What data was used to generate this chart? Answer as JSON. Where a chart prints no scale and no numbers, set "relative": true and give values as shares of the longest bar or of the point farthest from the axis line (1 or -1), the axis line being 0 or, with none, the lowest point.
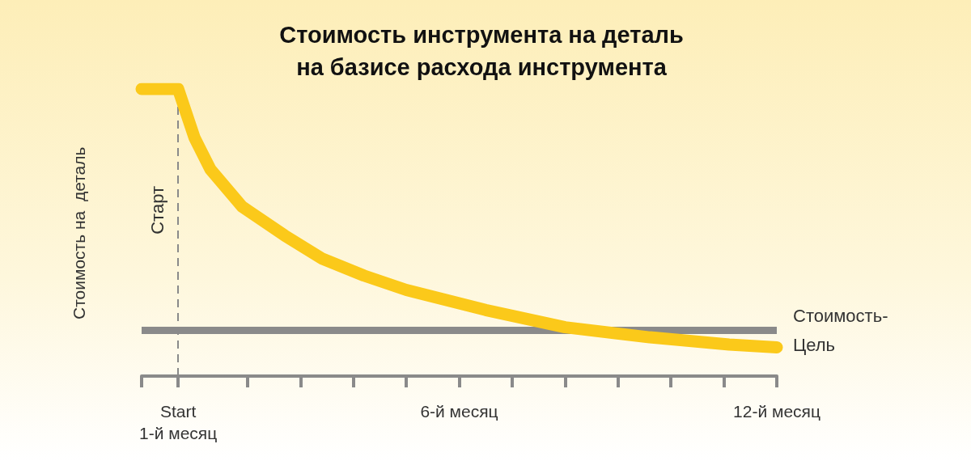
{
  "chart_data": {
    "type": "line",
    "title": "Стоимость инструмента на деталь\nна базисе расхода инструмента",
    "ylabel": "Стоимость на  деталь",
    "relative": true,
    "x": [
      0,
      0.69,
      1.0,
      1.3,
      1.9,
      2.7,
      3.4,
      4.2,
      5.0,
      6.5,
      8.0,
      9.6,
      11.1,
      12.0
    ],
    "series": [
      {
        "color": "#fbc91a",
        "values": [
          1,
          1,
          0.83,
          0.72,
          0.59,
          0.49,
          0.41,
          0.35,
          0.3,
          0.23,
          0.17,
          0.135,
          0.11,
          0.1
        ]
      }
    ],
    "xlim": [
      0,
      12
    ],
    "xticks": [
      {
        "value": 0,
        "label": null
      },
      {
        "value": 0.69,
        "label": "Start\n1-й месяц"
      },
      {
        "value": 2,
        "label": null
      },
      {
        "value": 3,
        "label": null
      },
      {
        "value": 4,
        "label": null
      },
      {
        "value": 5,
        "label": null
      },
      {
        "value": 6,
        "label": "6-й месяц"
      },
      {
        "value": 7,
        "label": null
      },
      {
        "value": 8,
        "label": null
      },
      {
        "value": 9,
        "label": null
      },
      {
        "value": 10,
        "label": null
      },
      {
        "value": 11,
        "label": null
      },
      {
        "value": 12,
        "label": "12-й месяц"
      }
    ],
    "ref_lines": [
      {
        "axis": "y",
        "value": 0.16,
        "label": "Стоимость-\nЦель",
        "color": "#8a8a8a",
        "line_style": "solid"
      },
      {
        "axis": "x",
        "value": 0.69,
        "label": "Старт",
        "color": "#8a8a8a",
        "line_style": "dashed"
      }
    ],
    "grid": false,
    "line_style": "solid"
  }
}
